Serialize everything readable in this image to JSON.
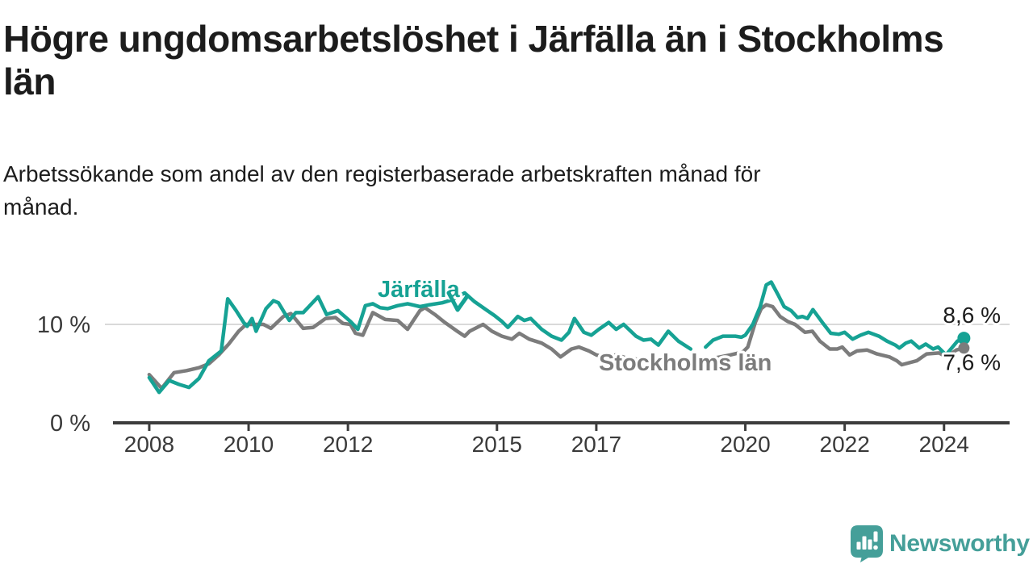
{
  "title": {
    "line1": "Högre ungdomsarbetslöshet i Järfälla än i Stockholms",
    "line2": "län"
  },
  "subtitle": {
    "line1": "Arbetssökande som andel av den registerbaserade arbetskraften månad för",
    "line2": "månad."
  },
  "footer": {
    "brand": "Newsworthy"
  },
  "colors": {
    "jarfalla": "#16a294",
    "stockholm": "#7c7c7c",
    "grid": "#d9d9d9",
    "axis": "#3c3c3c",
    "tick_text": "#3a3a3a",
    "value_text": "#1c1c1c",
    "brand": "#459f99",
    "halo": "#ffffff"
  },
  "chart_data": {
    "type": "line",
    "title": "Högre ungdomsarbetslöshet i Järfälla än i Stockholms län",
    "subtitle": "Arbetssökande som andel av den registerbaserade arbetskraften månad för månad.",
    "xlabel": "",
    "ylabel": "",
    "unit": "%",
    "grid": "horizontal-10-only",
    "legend_position": "inline-labels-on-lines",
    "xlim": [
      2007.27,
      2025.32
    ],
    "ylim": [
      0,
      15.2
    ],
    "xticks": [
      {
        "value": 2008,
        "label": "2008"
      },
      {
        "value": 2010,
        "label": "2010"
      },
      {
        "value": 2012,
        "label": "2012"
      },
      {
        "value": 2015,
        "label": "2015"
      },
      {
        "value": 2017,
        "label": "2017"
      },
      {
        "value": 2020,
        "label": "2020"
      },
      {
        "value": 2022,
        "label": "2022"
      },
      {
        "value": 2024,
        "label": "2024"
      }
    ],
    "yticks": [
      {
        "value": 0,
        "label": "0 %"
      },
      {
        "value": 10,
        "label": "10 %"
      }
    ],
    "series": [
      {
        "name": "Järfälla",
        "color": "#16a294",
        "end_label": "8,6 %",
        "end_value": 8.6,
        "points": [
          [
            2008.0,
            4.6
          ],
          [
            2008.2,
            3.1
          ],
          [
            2008.4,
            4.3
          ],
          [
            2008.6,
            3.9
          ],
          [
            2008.8,
            3.6
          ],
          [
            2009.0,
            4.5
          ],
          [
            2009.2,
            6.3
          ],
          [
            2009.45,
            7.3
          ],
          [
            2009.58,
            12.6
          ],
          [
            2009.75,
            11.4
          ],
          [
            2009.9,
            10.2
          ],
          [
            2009.97,
            9.8
          ],
          [
            2010.07,
            10.6
          ],
          [
            2010.15,
            9.3
          ],
          [
            2010.35,
            11.6
          ],
          [
            2010.5,
            12.4
          ],
          [
            2010.6,
            12.2
          ],
          [
            2010.72,
            11.2
          ],
          [
            2010.82,
            10.4
          ],
          [
            2010.95,
            11.2
          ],
          [
            2011.1,
            11.2
          ],
          [
            2011.4,
            12.8
          ],
          [
            2011.57,
            11.0
          ],
          [
            2011.8,
            11.4
          ],
          [
            2012.05,
            10.3
          ],
          [
            2012.2,
            9.5
          ],
          [
            2012.35,
            11.9
          ],
          [
            2012.5,
            12.1
          ],
          [
            2012.65,
            11.7
          ],
          [
            2012.8,
            11.6
          ],
          [
            2013.0,
            11.9
          ],
          [
            2013.2,
            12.1
          ],
          [
            2013.45,
            11.8
          ],
          [
            2013.65,
            12.0
          ],
          [
            2013.9,
            12.2
          ],
          [
            2014.1,
            12.5
          ],
          [
            2014.35,
            13.2
          ],
          [
            2014.55,
            12.3
          ],
          [
            2014.75,
            11.6
          ],
          [
            2014.95,
            10.9
          ],
          [
            2015.1,
            10.3
          ],
          [
            2015.22,
            9.7
          ],
          [
            2015.42,
            10.8
          ],
          [
            2015.55,
            10.4
          ],
          [
            2015.68,
            10.6
          ],
          [
            2015.9,
            9.5
          ],
          [
            2016.1,
            8.8
          ],
          [
            2016.3,
            8.4
          ],
          [
            2016.45,
            9.2
          ],
          [
            2016.56,
            10.6
          ],
          [
            2016.75,
            9.2
          ],
          [
            2016.9,
            8.9
          ],
          [
            2017.05,
            9.5
          ],
          [
            2017.25,
            10.2
          ],
          [
            2017.4,
            9.5
          ],
          [
            2017.55,
            10.0
          ],
          [
            2017.8,
            8.8
          ],
          [
            2017.95,
            8.4
          ],
          [
            2018.1,
            8.5
          ],
          [
            2018.25,
            7.9
          ],
          [
            2018.45,
            9.3
          ],
          [
            2018.65,
            8.3
          ],
          [
            2018.9,
            7.5
          ],
          null,
          [
            2019.2,
            7.7
          ],
          [
            2019.35,
            8.4
          ],
          [
            2019.55,
            8.8
          ],
          [
            2019.8,
            8.8
          ],
          [
            2019.92,
            8.7
          ],
          [
            2020.0,
            8.9
          ],
          [
            2020.15,
            10.0
          ],
          [
            2020.3,
            11.8
          ],
          [
            2020.42,
            14.0
          ],
          [
            2020.52,
            14.3
          ],
          [
            2020.67,
            12.9
          ],
          [
            2020.78,
            11.8
          ],
          [
            2020.92,
            11.4
          ],
          [
            2021.05,
            10.7
          ],
          [
            2021.15,
            10.8
          ],
          [
            2021.25,
            10.6
          ],
          [
            2021.36,
            11.5
          ],
          [
            2021.55,
            10.2
          ],
          [
            2021.72,
            9.1
          ],
          [
            2021.88,
            9.0
          ],
          [
            2022.0,
            9.2
          ],
          [
            2022.16,
            8.5
          ],
          [
            2022.32,
            8.9
          ],
          [
            2022.48,
            9.2
          ],
          [
            2022.69,
            8.8
          ],
          [
            2022.85,
            8.3
          ],
          [
            2023.02,
            7.9
          ],
          [
            2023.1,
            7.6
          ],
          [
            2023.23,
            8.1
          ],
          [
            2023.34,
            8.3
          ],
          [
            2023.5,
            7.6
          ],
          [
            2023.63,
            8.0
          ],
          [
            2023.78,
            7.5
          ],
          [
            2023.88,
            7.7
          ],
          [
            2024.04,
            6.9
          ],
          [
            2024.27,
            8.3
          ],
          [
            2024.4,
            8.6
          ]
        ]
      },
      {
        "name": "Stockholms län",
        "color": "#7c7c7c",
        "end_label": "7,6 %",
        "end_value": 7.6,
        "points": [
          [
            2008.0,
            4.9
          ],
          [
            2008.25,
            3.5
          ],
          [
            2008.5,
            5.1
          ],
          [
            2008.75,
            5.3
          ],
          [
            2009.0,
            5.6
          ],
          [
            2009.2,
            6.0
          ],
          [
            2009.4,
            6.9
          ],
          [
            2009.6,
            8.0
          ],
          [
            2009.8,
            9.3
          ],
          [
            2009.95,
            10.0
          ],
          [
            2010.3,
            10.0
          ],
          [
            2010.45,
            9.6
          ],
          [
            2010.7,
            10.8
          ],
          [
            2010.85,
            11.1
          ],
          [
            2011.1,
            9.6
          ],
          [
            2011.3,
            9.7
          ],
          [
            2011.55,
            10.6
          ],
          [
            2011.75,
            10.7
          ],
          [
            2011.9,
            10.1
          ],
          [
            2012.05,
            10.0
          ],
          [
            2012.15,
            9.1
          ],
          [
            2012.3,
            8.9
          ],
          [
            2012.5,
            11.2
          ],
          [
            2012.75,
            10.5
          ],
          [
            2013.0,
            10.4
          ],
          [
            2013.2,
            9.5
          ],
          [
            2013.45,
            11.4
          ],
          [
            2013.55,
            11.7
          ],
          [
            2013.75,
            11.0
          ],
          [
            2013.95,
            10.2
          ],
          [
            2014.2,
            9.3
          ],
          [
            2014.35,
            8.8
          ],
          [
            2014.45,
            9.3
          ],
          [
            2014.6,
            9.7
          ],
          [
            2014.72,
            10.0
          ],
          [
            2014.9,
            9.3
          ],
          [
            2015.1,
            8.8
          ],
          [
            2015.3,
            8.5
          ],
          [
            2015.45,
            9.1
          ],
          [
            2015.65,
            8.5
          ],
          [
            2015.9,
            8.1
          ],
          [
            2016.1,
            7.5
          ],
          [
            2016.28,
            6.7
          ],
          [
            2016.5,
            7.5
          ],
          [
            2016.65,
            7.7
          ],
          [
            2016.85,
            7.3
          ],
          [
            2017.0,
            6.9
          ],
          [
            2017.15,
            6.7
          ],
          [
            2017.4,
            6.9
          ],
          [
            2017.6,
            6.6
          ],
          [
            2017.9,
            6.4
          ],
          [
            2018.2,
            6.2
          ],
          [
            2018.5,
            6.4
          ],
          [
            2018.8,
            6.2
          ],
          [
            2019.1,
            6.4
          ],
          [
            2019.4,
            6.6
          ],
          [
            2019.7,
            6.9
          ],
          [
            2019.95,
            7.2
          ],
          [
            2020.05,
            7.7
          ],
          [
            2020.2,
            10.2
          ],
          [
            2020.32,
            11.6
          ],
          [
            2020.42,
            12.0
          ],
          [
            2020.55,
            11.8
          ],
          [
            2020.7,
            10.8
          ],
          [
            2020.85,
            10.3
          ],
          [
            2021.0,
            10.0
          ],
          [
            2021.2,
            9.2
          ],
          [
            2021.35,
            9.3
          ],
          [
            2021.5,
            8.3
          ],
          [
            2021.7,
            7.5
          ],
          [
            2021.85,
            7.5
          ],
          [
            2021.95,
            7.7
          ],
          [
            2022.1,
            6.9
          ],
          [
            2022.25,
            7.3
          ],
          [
            2022.45,
            7.4
          ],
          [
            2022.65,
            7.0
          ],
          [
            2022.9,
            6.7
          ],
          [
            2023.05,
            6.3
          ],
          [
            2023.15,
            5.9
          ],
          [
            2023.45,
            6.3
          ],
          [
            2023.65,
            7.0
          ],
          [
            2023.9,
            7.1
          ],
          [
            2024.05,
            6.7
          ],
          [
            2024.25,
            7.4
          ],
          [
            2024.4,
            7.6
          ]
        ]
      }
    ]
  }
}
